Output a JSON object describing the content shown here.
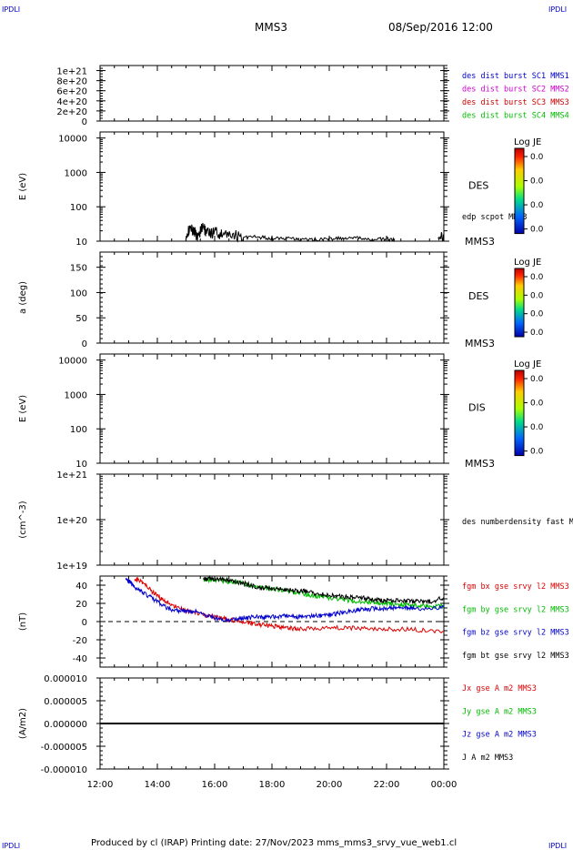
{
  "corner_label": "IPDLI",
  "header": {
    "spacecraft": "MMS3",
    "datetime": "08/Sep/2016 12:00"
  },
  "footer": "Produced by cl (IRAP)   Printing date: 27/Nov/2023   mms_mms3_srvy_vue_web1.cl",
  "chart_data": [
    {
      "id": "p1",
      "type": "line",
      "ticks": [
        "1e+21",
        "8e+20",
        "6e+20",
        "4e+20",
        "2e+20",
        "0"
      ],
      "tick_values": [
        1e+21,
        8e+20,
        6e+20,
        4e+20,
        2e+20,
        0
      ],
      "ylim": [
        0,
        1.1e+21
      ],
      "zero_line": true,
      "legend": [
        {
          "text": "des dist burst SC1 MMS1",
          "color": "#0000cc"
        },
        {
          "text": "des dist burst SC2 MMS2",
          "color": "#cc00cc"
        },
        {
          "text": "des dist burst SC3 MMS3",
          "color": "#cc0000"
        },
        {
          "text": "des dist burst SC4 MMS4",
          "color": "#00bb00"
        }
      ]
    },
    {
      "id": "p2",
      "type": "heatmap",
      "ylabel": "E (eV)",
      "scale": "log",
      "ylim": [
        10,
        15000
      ],
      "ticks": [
        "10000",
        "1000",
        "100",
        "10"
      ],
      "tick_values": [
        10000,
        1000,
        100,
        10
      ],
      "instrument": "DES",
      "spacecraft_label": "MMS3",
      "overlay_label": "edp scpot MMS3",
      "colorbar": {
        "title": "Log JE",
        "ticks": [
          "0.0",
          "0.0",
          "0.0",
          "0.0"
        ]
      },
      "overlay_series": {
        "name": "edp scpot MMS3",
        "color": "#000000",
        "x_hours": [
          15.0,
          15.2,
          15.4,
          15.6,
          15.8,
          16.0,
          16.3,
          16.6,
          17.0,
          17.5,
          18.0,
          18.5,
          19.0,
          19.5,
          20.0,
          20.5,
          21.0,
          21.5,
          22.0,
          22.3,
          22.6,
          23.0,
          23.5,
          23.8,
          24.0
        ],
        "values": [
          18,
          22,
          15,
          25,
          16,
          20,
          14,
          16,
          13,
          13,
          12,
          12,
          11,
          11,
          11.5,
          12,
          12,
          11,
          11.5,
          11,
          null,
          null,
          null,
          12,
          14
        ]
      }
    },
    {
      "id": "p3",
      "type": "heatmap",
      "ylabel": "a (deg)",
      "scale": "linear",
      "ylim": [
        0,
        180
      ],
      "ticks": [
        "150",
        "100",
        "50",
        "0"
      ],
      "tick_values": [
        150,
        100,
        50,
        0
      ],
      "instrument": "DES",
      "spacecraft_label": "MMS3",
      "colorbar": {
        "title": "Log JE",
        "ticks": [
          "0.0",
          "0.0",
          "0.0",
          "0.0"
        ]
      }
    },
    {
      "id": "p4",
      "type": "heatmap",
      "ylabel": "E (eV)",
      "scale": "log",
      "ylim": [
        10,
        15000
      ],
      "ticks": [
        "10000",
        "1000",
        "100",
        "10"
      ],
      "tick_values": [
        10000,
        1000,
        100,
        10
      ],
      "instrument": "DIS",
      "spacecraft_label": "MMS3",
      "colorbar": {
        "title": "Log JE",
        "ticks": [
          "0.0",
          "0.0",
          "0.0",
          "0.0"
        ]
      }
    },
    {
      "id": "p5",
      "type": "line",
      "ylabel": "(cm^-3)",
      "scale": "log",
      "ylim": [
        1e+19,
        1e+21
      ],
      "ticks": [
        "1e+21",
        "1e+20",
        "1e+19"
      ],
      "tick_values": [
        1e+21,
        1e+20,
        1e+19
      ],
      "legend": [
        {
          "text": "des numberdensity fast M",
          "color": "#000000"
        }
      ]
    },
    {
      "id": "p6",
      "type": "line",
      "ylabel": "(nT)",
      "ylim": [
        -50,
        50
      ],
      "ticks": [
        "40",
        "20",
        "0",
        "-20",
        "-40"
      ],
      "tick_values": [
        40,
        20,
        0,
        -20,
        -40
      ],
      "zero_line": true,
      "legend": [
        {
          "text": "fgm bx gse srvy l2 MMS3",
          "color": "#dd0000"
        },
        {
          "text": "fgm by gse srvy l2 MMS3",
          "color": "#00bb00"
        },
        {
          "text": "fgm bz gse srvy l2 MMS3",
          "color": "#0000cc"
        },
        {
          "text": "fgm bt gse srvy l2 MMS3",
          "color": "#000000"
        }
      ],
      "series": [
        {
          "name": "fgm bx gse srvy l2 MMS3",
          "color": "#dd0000",
          "x_hours": [
            13.2,
            13.5,
            14.0,
            14.5,
            15.0,
            15.5,
            16.0,
            16.5,
            17.0,
            17.5,
            18.0,
            18.5,
            19.0,
            20.0,
            21.0,
            22.0,
            23.0,
            24.0
          ],
          "values": [
            48,
            42,
            28,
            18,
            12,
            8,
            5,
            2,
            0,
            -3,
            -5,
            -7,
            -8,
            -7,
            -7,
            -8,
            -9,
            -11
          ]
        },
        {
          "name": "fgm by gse srvy l2 MMS3",
          "color": "#00bb00",
          "x_hours": [
            15.6,
            16.0,
            16.5,
            17.0,
            17.5,
            18.0,
            18.5,
            19.0,
            19.5,
            20.0,
            20.5,
            21.0,
            21.5,
            22.0,
            22.5,
            23.0,
            23.5,
            24.0
          ],
          "values": [
            46,
            46,
            44,
            42,
            38,
            36,
            34,
            31,
            28,
            26,
            24,
            22,
            21,
            20,
            19,
            18,
            17,
            17
          ]
        },
        {
          "name": "fgm bz gse srvy l2 MMS3",
          "color": "#0000cc",
          "x_hours": [
            12.9,
            13.2,
            13.5,
            14.0,
            14.5,
            15.0,
            15.5,
            16.0,
            16.5,
            17.0,
            17.5,
            18.0,
            18.5,
            19.0,
            19.5,
            20.0,
            20.5,
            21.0,
            21.5,
            22.0,
            22.5,
            23.0,
            24.0
          ],
          "values": [
            48,
            38,
            32,
            22,
            12,
            12,
            10,
            4,
            1,
            4,
            5,
            5,
            6,
            5,
            6,
            7,
            10,
            13,
            14,
            14,
            15,
            14,
            16
          ]
        },
        {
          "name": "fgm bt gse srvy l2 MMS3",
          "color": "#000000",
          "x_hours": [
            15.6,
            16.0,
            16.5,
            17.0,
            17.5,
            18.0,
            18.5,
            19.0,
            19.5,
            20.0,
            20.5,
            21.0,
            21.5,
            22.0,
            22.5,
            23.0,
            23.5,
            24.0
          ],
          "values": [
            47,
            47,
            45,
            42,
            38,
            36,
            35,
            34,
            31,
            29,
            27,
            27,
            24,
            23,
            23,
            22,
            22,
            26
          ]
        }
      ]
    },
    {
      "id": "p7",
      "type": "line",
      "ylabel": "(A/m2)",
      "ylim": [
        -1e-05,
        1e-05
      ],
      "ticks": [
        "0.000010",
        "0.000005",
        "0.000000",
        "-0.000005",
        "-0.000010"
      ],
      "tick_values": [
        1e-05,
        5e-06,
        0,
        -5e-06,
        -1e-05
      ],
      "legend": [
        {
          "text": "Jx gse A m2 MMS3",
          "color": "#dd0000"
        },
        {
          "text": "Jy gse A m2 MMS3",
          "color": "#00bb00"
        },
        {
          "text": "Jz gse A m2 MMS3",
          "color": "#0000cc"
        },
        {
          "text": "J A m2 MMS3",
          "color": "#000000"
        }
      ],
      "series": [
        {
          "name": "Jz gse A m2 MMS3",
          "color": "#0000cc",
          "x_hours": [
            12,
            24
          ],
          "values": [
            0,
            0
          ]
        },
        {
          "name": "J A m2 MMS3",
          "color": "#000000",
          "x_hours": [
            12,
            24
          ],
          "values": [
            0,
            0
          ]
        }
      ]
    }
  ],
  "x_axis": {
    "ticks": [
      "12:00",
      "14:00",
      "16:00",
      "18:00",
      "20:00",
      "22:00",
      "00:00"
    ],
    "range_hours": [
      12,
      24
    ]
  }
}
